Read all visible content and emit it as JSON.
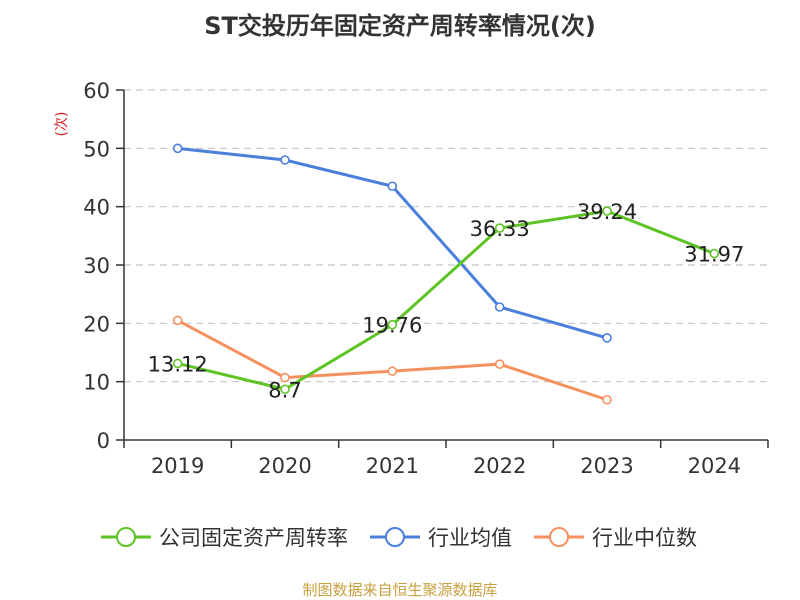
{
  "title": "ST交投历年固定资产周转率情况(次)",
  "source": "制图数据来自恒生聚源数据库",
  "colors": {
    "company": "#5ec425",
    "industry_avg": "#4a7fdb",
    "industry_median": "#f5915e",
    "unit_label": "#d42020",
    "source": "#c8a040"
  },
  "chart_data": {
    "type": "line",
    "title": "ST交投历年固定资产周转率情况(次)",
    "xlabel": "",
    "ylabel": "(次)",
    "ylim": [
      0,
      60
    ],
    "yticks": [
      0,
      10,
      20,
      30,
      40,
      50,
      60
    ],
    "grid": true,
    "legend_position": "bottom",
    "categories": [
      "2019",
      "2020",
      "2021",
      "2022",
      "2023",
      "2024"
    ],
    "series": [
      {
        "name": "公司固定资产周转率",
        "values": [
          13.12,
          8.7,
          19.76,
          36.33,
          39.24,
          31.97
        ],
        "labels": [
          "13.12",
          "8.7",
          "19.76",
          "36.33",
          "39.24",
          "31.97"
        ]
      },
      {
        "name": "行业均值",
        "values": [
          50.0,
          48.0,
          43.5,
          22.8,
          17.5,
          null
        ]
      },
      {
        "name": "行业中位数",
        "values": [
          20.5,
          10.7,
          11.8,
          13.0,
          6.9,
          null
        ]
      }
    ]
  }
}
